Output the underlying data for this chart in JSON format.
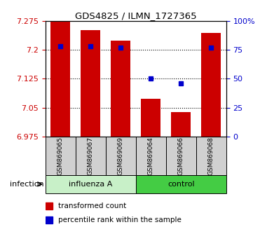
{
  "title": "GDS4825 / ILMN_1727365",
  "samples": [
    "GSM869065",
    "GSM869067",
    "GSM869069",
    "GSM869064",
    "GSM869066",
    "GSM869068"
  ],
  "bar_color": "#cc0000",
  "marker_color": "#0000cc",
  "y_min": 6.975,
  "y_max": 7.275,
  "y_ticks": [
    6.975,
    7.05,
    7.125,
    7.2,
    7.275
  ],
  "y_tick_labels": [
    "6.975",
    "7.05",
    "7.125",
    "7.2",
    "7.275"
  ],
  "right_y_ticks": [
    0.0,
    0.25,
    0.5,
    0.75,
    1.0
  ],
  "right_y_tick_labels": [
    "0",
    "25",
    "50",
    "75",
    "100%"
  ],
  "gridline_y": [
    7.05,
    7.125,
    7.2
  ],
  "transformed_counts": [
    7.275,
    7.252,
    7.225,
    7.072,
    7.038,
    7.245
  ],
  "percentile_ranks": [
    0.78,
    0.78,
    0.77,
    0.5,
    0.46,
    0.77
  ],
  "bar_width": 0.65,
  "group_spans": [
    [
      0,
      2,
      "influenza A",
      "#c8f0c8"
    ],
    [
      3,
      5,
      "control",
      "#44cc44"
    ]
  ],
  "sample_bg": "#d0d0d0",
  "label_infection": "infection",
  "legend_red_label": "transformed count",
  "legend_blue_label": "percentile rank within the sample",
  "legend_marker_size": 7
}
